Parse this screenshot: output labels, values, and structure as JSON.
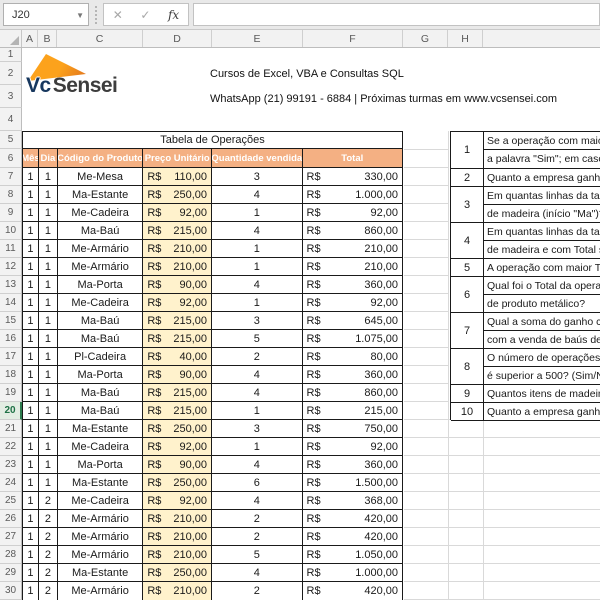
{
  "chrome": {
    "name_box": "J20",
    "formula_value": "",
    "cancel_label": "✕",
    "enter_label": "✓",
    "fx_label": "fx",
    "column_headers": [
      "A",
      "B",
      "C",
      "D",
      "E",
      "F",
      "G",
      "H"
    ],
    "visible_rows": 30,
    "active_row": 20
  },
  "branding": {
    "logo_vc": "Vc",
    "logo_sensei": "Sensei",
    "line1": "Cursos de Excel, VBA e Consultas SQL",
    "line2": "WhatsApp (21) 99191 - 6884 | Próximas turmas em www.vcsensei.com"
  },
  "operations_table": {
    "title": "Tabela de Operações",
    "headers": [
      "Mês",
      "Dia",
      "Código do Produto",
      "Preço Unitário",
      "Quantidade vendida",
      "Total"
    ],
    "currency_symbol": "R$",
    "rows": [
      {
        "mes": "1",
        "dia": "1",
        "codigo": "Me-Mesa",
        "preco": "110,00",
        "qtd": "3",
        "total": "330,00"
      },
      {
        "mes": "1",
        "dia": "1",
        "codigo": "Ma-Estante",
        "preco": "250,00",
        "qtd": "4",
        "total": "1.000,00"
      },
      {
        "mes": "1",
        "dia": "1",
        "codigo": "Me-Cadeira",
        "preco": "92,00",
        "qtd": "1",
        "total": "92,00"
      },
      {
        "mes": "1",
        "dia": "1",
        "codigo": "Ma-Baú",
        "preco": "215,00",
        "qtd": "4",
        "total": "860,00"
      },
      {
        "mes": "1",
        "dia": "1",
        "codigo": "Me-Armário",
        "preco": "210,00",
        "qtd": "1",
        "total": "210,00"
      },
      {
        "mes": "1",
        "dia": "1",
        "codigo": "Me-Armário",
        "preco": "210,00",
        "qtd": "1",
        "total": "210,00"
      },
      {
        "mes": "1",
        "dia": "1",
        "codigo": "Ma-Porta",
        "preco": "90,00",
        "qtd": "4",
        "total": "360,00"
      },
      {
        "mes": "1",
        "dia": "1",
        "codigo": "Me-Cadeira",
        "preco": "92,00",
        "qtd": "1",
        "total": "92,00"
      },
      {
        "mes": "1",
        "dia": "1",
        "codigo": "Ma-Baú",
        "preco": "215,00",
        "qtd": "3",
        "total": "645,00"
      },
      {
        "mes": "1",
        "dia": "1",
        "codigo": "Ma-Baú",
        "preco": "215,00",
        "qtd": "5",
        "total": "1.075,00"
      },
      {
        "mes": "1",
        "dia": "1",
        "codigo": "Pl-Cadeira",
        "preco": "40,00",
        "qtd": "2",
        "total": "80,00"
      },
      {
        "mes": "1",
        "dia": "1",
        "codigo": "Ma-Porta",
        "preco": "90,00",
        "qtd": "4",
        "total": "360,00"
      },
      {
        "mes": "1",
        "dia": "1",
        "codigo": "Ma-Baú",
        "preco": "215,00",
        "qtd": "4",
        "total": "860,00"
      },
      {
        "mes": "1",
        "dia": "1",
        "codigo": "Ma-Baú",
        "preco": "215,00",
        "qtd": "1",
        "total": "215,00"
      },
      {
        "mes": "1",
        "dia": "1",
        "codigo": "Ma-Estante",
        "preco": "250,00",
        "qtd": "3",
        "total": "750,00"
      },
      {
        "mes": "1",
        "dia": "1",
        "codigo": "Me-Cadeira",
        "preco": "92,00",
        "qtd": "1",
        "total": "92,00"
      },
      {
        "mes": "1",
        "dia": "1",
        "codigo": "Ma-Porta",
        "preco": "90,00",
        "qtd": "4",
        "total": "360,00"
      },
      {
        "mes": "1",
        "dia": "1",
        "codigo": "Ma-Estante",
        "preco": "250,00",
        "qtd": "6",
        "total": "1.500,00"
      },
      {
        "mes": "1",
        "dia": "2",
        "codigo": "Me-Cadeira",
        "preco": "92,00",
        "qtd": "4",
        "total": "368,00"
      },
      {
        "mes": "1",
        "dia": "2",
        "codigo": "Me-Armário",
        "preco": "210,00",
        "qtd": "2",
        "total": "420,00"
      },
      {
        "mes": "1",
        "dia": "2",
        "codigo": "Me-Armário",
        "preco": "210,00",
        "qtd": "2",
        "total": "420,00"
      },
      {
        "mes": "1",
        "dia": "2",
        "codigo": "Me-Armário",
        "preco": "210,00",
        "qtd": "5",
        "total": "1.050,00"
      },
      {
        "mes": "1",
        "dia": "2",
        "codigo": "Ma-Estante",
        "preco": "250,00",
        "qtd": "4",
        "total": "1.000,00"
      },
      {
        "mes": "1",
        "dia": "2",
        "codigo": "Me-Armário",
        "preco": "210,00",
        "qtd": "2",
        "total": "420,00"
      }
    ]
  },
  "questions": {
    "items": [
      {
        "num": "1",
        "lines": [
          "Se a operação com maior T",
          "a palavra \"Sim\"; em caso c"
        ]
      },
      {
        "num": "2",
        "lines": [
          "Quanto a empresa ganhou"
        ]
      },
      {
        "num": "3",
        "lines": [
          "Em quantas linhas da tabe",
          "de madeira (início \"Ma\")?"
        ]
      },
      {
        "num": "4",
        "lines": [
          "Em quantas linhas da tabe",
          "de madeira e com Total su"
        ]
      },
      {
        "num": "5",
        "lines": [
          "A operação com maior Tot"
        ]
      },
      {
        "num": "6",
        "lines": [
          "Qual foi o Total da operaç",
          "de produto metálico?"
        ]
      },
      {
        "num": "7",
        "lines": [
          "Qual a soma do ganho com",
          "com a venda de baús de m"
        ]
      },
      {
        "num": "8",
        "lines": [
          "O número de operações e",
          "é superior a 500? (Sim/Nã"
        ]
      },
      {
        "num": "9",
        "lines": [
          "Quantos itens de madeira"
        ]
      },
      {
        "num": "10",
        "lines": [
          "Quanto a empresa ganhou"
        ]
      }
    ]
  },
  "colors": {
    "header_orange": "#F4B083",
    "price_fill": "#FFF2CC",
    "logo_orange": "#F7941E",
    "logo_navy": "#17375E",
    "active_row_green": "#1E7145"
  }
}
